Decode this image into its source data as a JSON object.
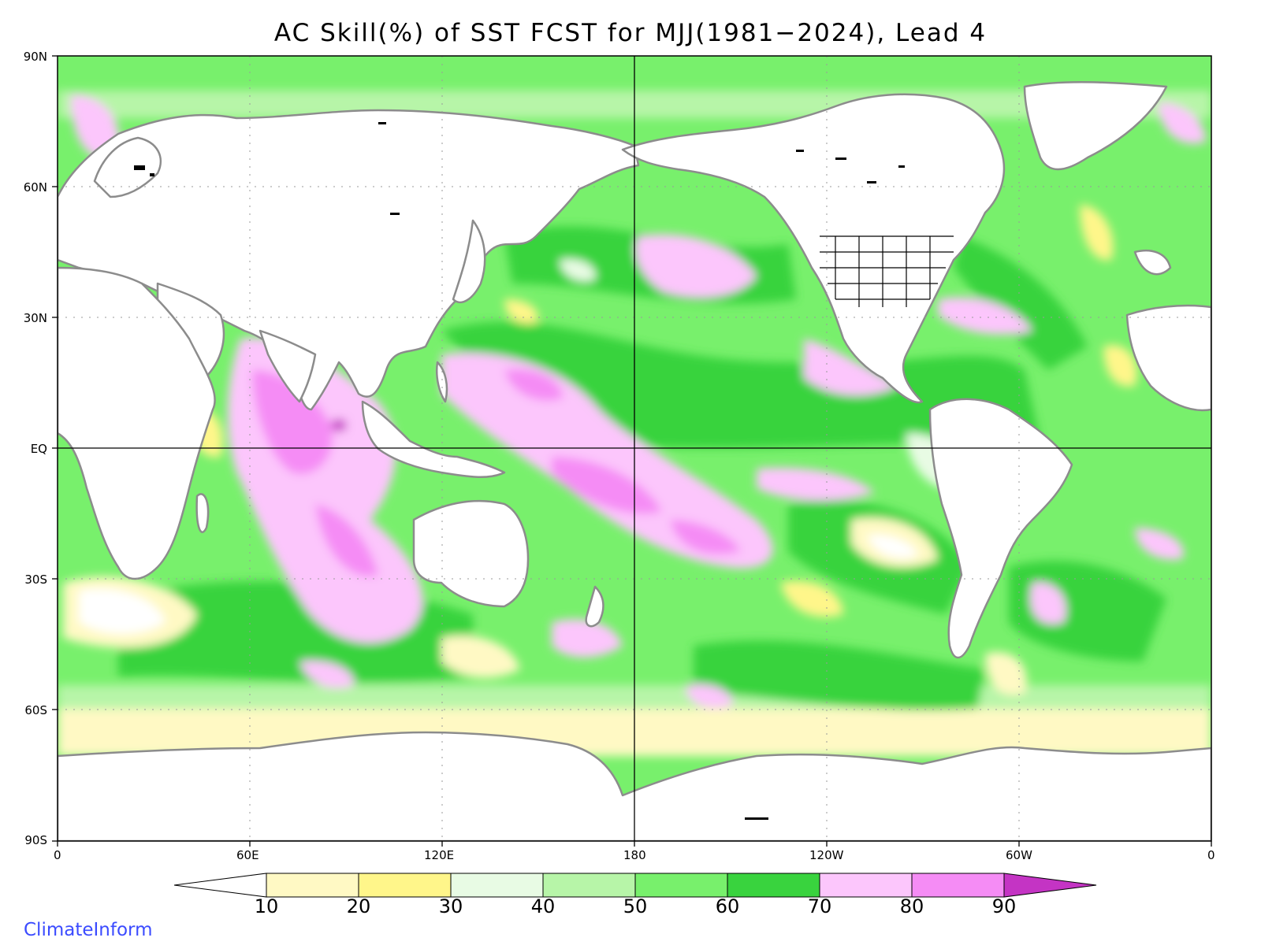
{
  "title": "AC Skill(%) of SST FCST for MJJ(1981−2024), Lead 4",
  "lat_labels": [
    "90N",
    "60N",
    "30N",
    "EQ",
    "30S",
    "60S",
    "90S"
  ],
  "lon_labels": [
    "0",
    "60E",
    "120E",
    "180",
    "120W",
    "60W",
    "0"
  ],
  "colorbar": {
    "labels": [
      "10",
      "20",
      "30",
      "40",
      "50",
      "60",
      "70",
      "80",
      "90"
    ],
    "colors": [
      "#ffffff",
      "#fff9c4",
      "#fff68a",
      "#e8fbe4",
      "#b7f5a8",
      "#78f06c",
      "#39d33e",
      "#fcc6fc",
      "#f58cf5",
      "#c434c4"
    ]
  },
  "brand": "ClimateInform",
  "colors": {
    "land": "#ffffff",
    "coast": "#8c8c8c",
    "lakes": "#000000"
  }
}
